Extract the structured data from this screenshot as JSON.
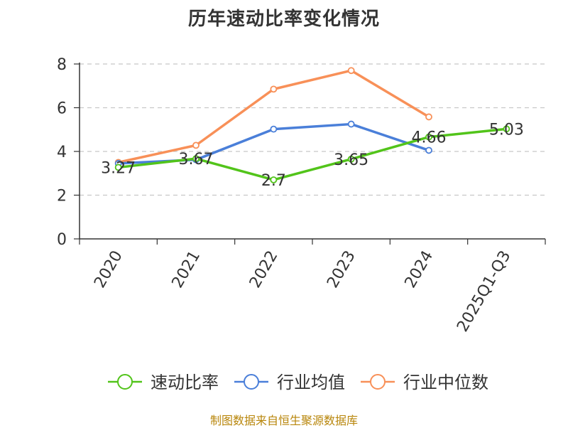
{
  "chart_data": {
    "type": "line",
    "title": "历年速动比率变化情况",
    "categories": [
      "2020",
      "2021",
      "2022",
      "2023",
      "2024",
      "2025Q1-Q3"
    ],
    "ylim": [
      0,
      8
    ],
    "yticks": [
      0,
      2,
      4,
      6,
      8
    ],
    "grid": true,
    "legend_position": "bottom",
    "series": [
      {
        "name": "速动比率",
        "color": "#52c41a",
        "values": [
          3.27,
          3.67,
          2.7,
          3.65,
          4.66,
          5.03
        ],
        "labels": [
          "3.27",
          "3.67",
          "2.7",
          "3.65",
          "4.66",
          "5.03"
        ]
      },
      {
        "name": "行业均值",
        "color": "#4a7fd9",
        "values": [
          3.45,
          3.62,
          5.02,
          5.25,
          4.05,
          null
        ]
      },
      {
        "name": "行业中位数",
        "color": "#f89058",
        "values": [
          3.5,
          4.28,
          6.85,
          7.7,
          5.58,
          null
        ]
      }
    ]
  },
  "source": "制图数据来自恒生聚源数据库"
}
